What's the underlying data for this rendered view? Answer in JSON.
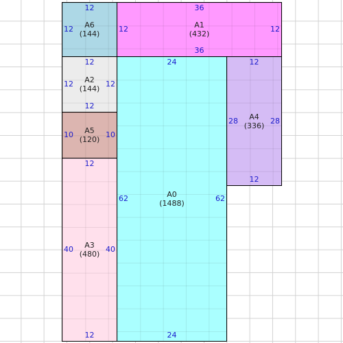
{
  "rects": {
    "A6": {
      "name": "A6",
      "area": "(144)",
      "top": "12",
      "bottom": "",
      "left": "12",
      "right": "",
      "color": "#add8e6"
    },
    "A1": {
      "name": "A1",
      "area": "(432)",
      "top": "36",
      "bottom": "36",
      "left": "12",
      "right": "12",
      "color": "#ff99ff"
    },
    "A2": {
      "name": "A2",
      "area": "(144)",
      "top": "12",
      "bottom": "12",
      "left": "12",
      "right": "12",
      "color": "#ececec"
    },
    "A5": {
      "name": "A5",
      "area": "(120)",
      "top": "",
      "bottom": "",
      "left": "10",
      "right": "10",
      "color": "#dcb5b0"
    },
    "A3": {
      "name": "A3",
      "area": "(480)",
      "top": "12",
      "bottom": "12",
      "left": "40",
      "right": "40",
      "color": "#ffe0ec"
    },
    "A0": {
      "name": "A0",
      "area": "(1488)",
      "top": "24",
      "bottom": "24",
      "left": "62",
      "right": "62",
      "color": "#aaffff"
    },
    "A4": {
      "name": "A4",
      "area": "(336)",
      "top": "12",
      "bottom": "12",
      "left": "28",
      "right": "28",
      "color": "#d5bcf5"
    }
  }
}
